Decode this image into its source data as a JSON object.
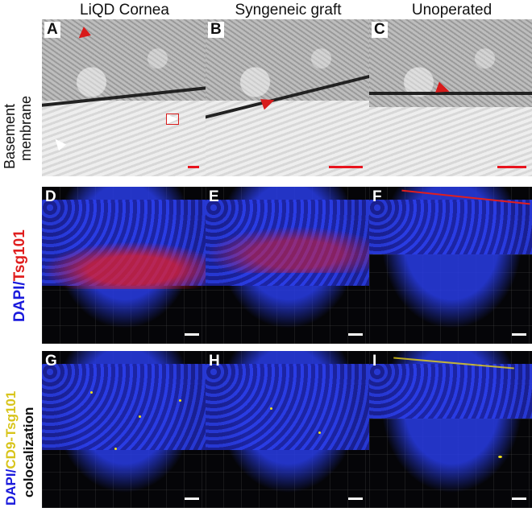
{
  "columns": [
    "LiQD Cornea",
    "Syngeneic graft",
    "Unoperated"
  ],
  "row_labels": {
    "em_line1": "Basement",
    "em_line2": "menbrane",
    "tsg_dapi": "DAPI/",
    "tsg_marker": "Tsg101",
    "coloc_dapi": "DAPI/",
    "coloc_marker": "CD9-Tsg101",
    "coloc_word": "colocalization"
  },
  "panels": [
    "A",
    "B",
    "C",
    "D",
    "E",
    "F",
    "G",
    "H",
    "I"
  ],
  "colors": {
    "dapi": "#1a1adc",
    "tsg101": "#e01e1e",
    "cd9_tsg101": "#e8d21a",
    "arrow": "#d81b1b",
    "scalebar_em": "#e8141e",
    "scalebar_fl": "#ffffff"
  }
}
